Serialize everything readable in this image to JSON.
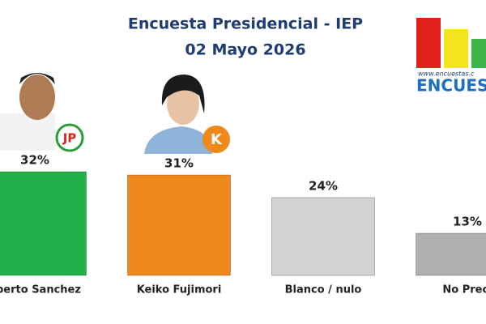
{
  "chart_data": {
    "type": "bar",
    "title": "Encuesta Presidencial - IEP",
    "subtitle": "02 Mayo 2026",
    "categories": [
      "oberto Sanchez",
      "Keiko  Fujimori",
      "Blanco / nulo",
      "No Preci"
    ],
    "values": [
      32,
      31,
      24,
      13
    ],
    "value_labels": [
      "32%",
      "31%",
      "24%",
      "13%"
    ],
    "colors": [
      "#22b04a",
      "#f0891c",
      "#d3d3d3",
      "#b1afaf"
    ]
  },
  "logo": {
    "url": "www.encuestas.c",
    "name": "ENCUES"
  },
  "party_logos": [
    "JP",
    "K"
  ]
}
